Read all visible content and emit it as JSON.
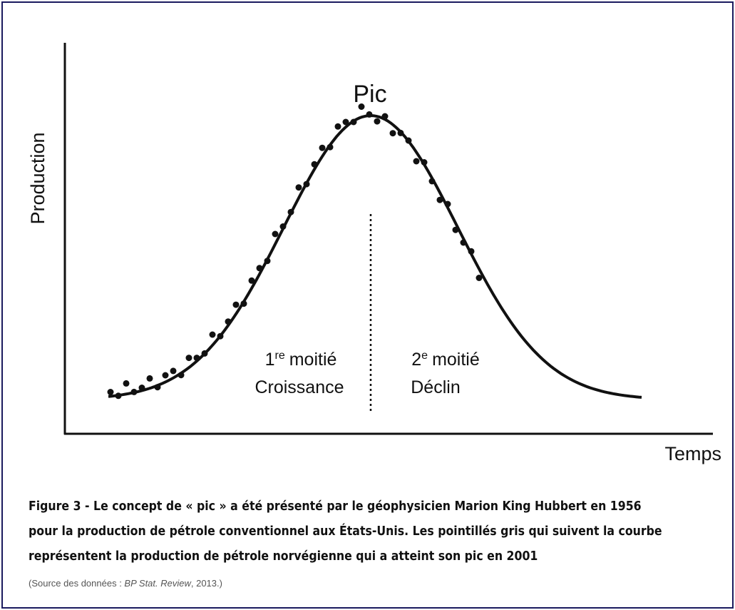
{
  "figure": {
    "y_axis_label": "Production",
    "x_axis_label": "Temps",
    "peak_label": "Pic",
    "first_half": {
      "number": "1",
      "sup": "re",
      "word": "moitié",
      "phase": "Croissance"
    },
    "second_half": {
      "number": "2",
      "sup": "e",
      "word": "moitié",
      "phase": "Déclin"
    }
  },
  "caption": {
    "lines": [
      "Figure 3 - Le concept de « pic » a été présenté par le géophysicien Marion King Hubbert en 1956",
      "pour la production de pétrole conventionnel aux États-Unis. Les pointillés gris qui suivent la courbe",
      "représentent la production de pétrole norvégienne qui a atteint son pic en 2001"
    ],
    "source_prefix": "(Source des données : ",
    "source_italic": "BP Stat. Review",
    "source_suffix": ", 2013.)"
  }
}
